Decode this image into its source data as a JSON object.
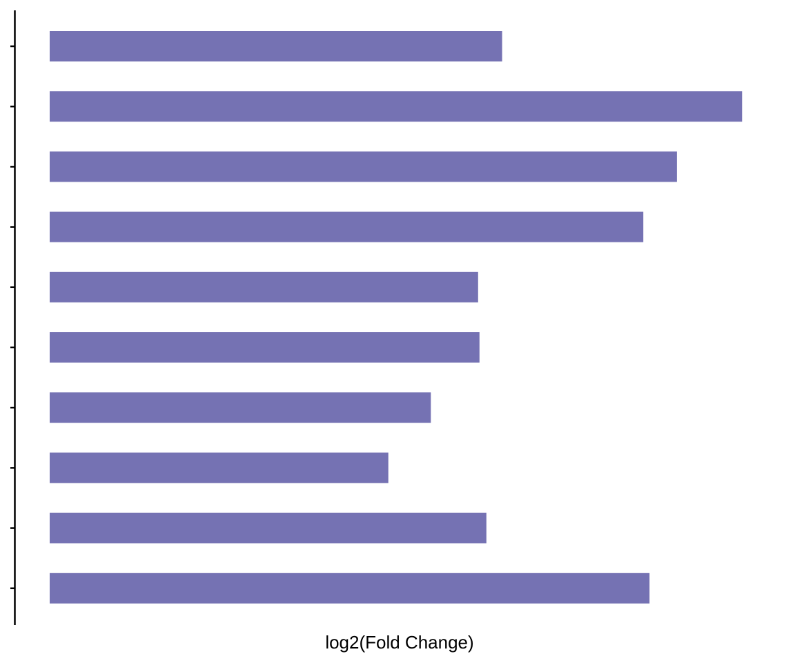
{
  "chart_data": {
    "type": "bar",
    "orientation": "horizontal",
    "categories": [
      "",
      "",
      "",
      "",
      "",
      "",
      "",
      "",
      "",
      ""
    ],
    "values": [
      6.6,
      10.1,
      9.15,
      8.66,
      6.25,
      6.27,
      5.56,
      4.94,
      6.37,
      8.75
    ],
    "xlabel": "log2(Fold Change)",
    "ylabel": "",
    "xlim": [
      0,
      10.5
    ],
    "grid": false,
    "legend": "none",
    "bar_color": "#7572b3",
    "axis_color": "#000000"
  }
}
